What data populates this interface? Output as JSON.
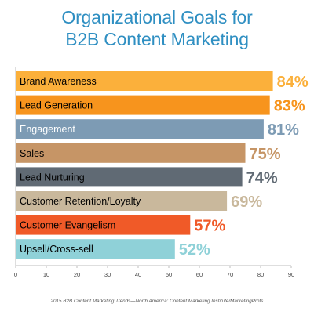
{
  "chart_data": {
    "type": "bar",
    "orientation": "horizontal",
    "title_lines": [
      "Organizational Goals for",
      "B2B Content Marketing"
    ],
    "categories": [
      "Brand Awareness",
      "Lead Generation",
      "Engagement",
      "Sales",
      "Lead Nurturing",
      "Customer Retention/Loyalty",
      "Customer Evangelism",
      "Upsell/Cross-sell"
    ],
    "values": [
      84,
      83,
      81,
      75,
      74,
      69,
      57,
      52
    ],
    "value_labels": [
      "84%",
      "83%",
      "81%",
      "75%",
      "74%",
      "69%",
      "57%",
      "52%"
    ],
    "bar_colors": [
      "#fbb03b",
      "#f7941d",
      "#7d9bb4",
      "#c69566",
      "#606a74",
      "#c9b89c",
      "#f05a28",
      "#8fd1d8"
    ],
    "label_colors": [
      "#fbb03b",
      "#f7941d",
      "#7d9bb4",
      "#c69566",
      "#606a74",
      "#c9b89c",
      "#f05a28",
      "#8fd1d8"
    ],
    "category_text_colors": [
      "#000000",
      "#000000",
      "#ffffff",
      "#000000",
      "#000000",
      "#000000",
      "#000000",
      "#000000"
    ],
    "xlim": [
      0,
      90
    ],
    "xticks": [
      "0",
      "10",
      "20",
      "30",
      "40",
      "50",
      "60",
      "70",
      "80",
      "90"
    ],
    "xlabel": "",
    "ylabel": "",
    "grid": false
  },
  "source": "2015 B2B Content Marketing Trends—North America: Content Marketing Institute/MarketingProfs"
}
